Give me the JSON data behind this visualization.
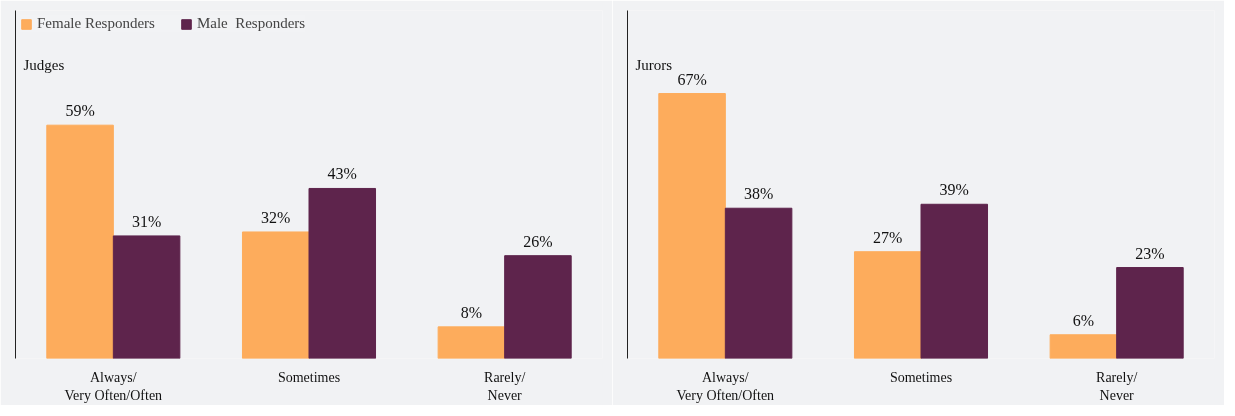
{
  "chart_data": [
    {
      "type": "bar",
      "title": "Judges",
      "categories": [
        "Always/\nVery Often/Often",
        "Sometimes",
        "Rarely/\nNever"
      ],
      "ylim": [
        0,
        88
      ],
      "tick_labels": "x",
      "legend": "top left",
      "grid": false,
      "series": [
        {
          "name": "Female Responders",
          "color": "#fdac5c",
          "values": [
            59,
            32,
            8
          ],
          "value_labels": [
            "59%",
            "32%",
            "8%"
          ]
        },
        {
          "name": "Male  Responders",
          "color": "#5e244c",
          "values": [
            31,
            43,
            26
          ],
          "value_labels": [
            "31%",
            "43%",
            "26%"
          ]
        }
      ]
    },
    {
      "type": "bar",
      "title": "Jurors",
      "categories": [
        "Always/\nVery Often/Often",
        "Sometimes",
        "Rarely/\nNever"
      ],
      "ylim": [
        0,
        88
      ],
      "tick_labels": "x",
      "grid": false,
      "series": [
        {
          "color": "#fdac5c",
          "values": [
            67,
            27,
            6
          ],
          "value_labels": [
            "67%",
            "27%",
            "6%"
          ]
        },
        {
          "color": "#5e244c",
          "values": [
            38,
            39,
            23
          ],
          "value_labels": [
            "38%",
            "39%",
            "23%"
          ]
        }
      ]
    }
  ]
}
